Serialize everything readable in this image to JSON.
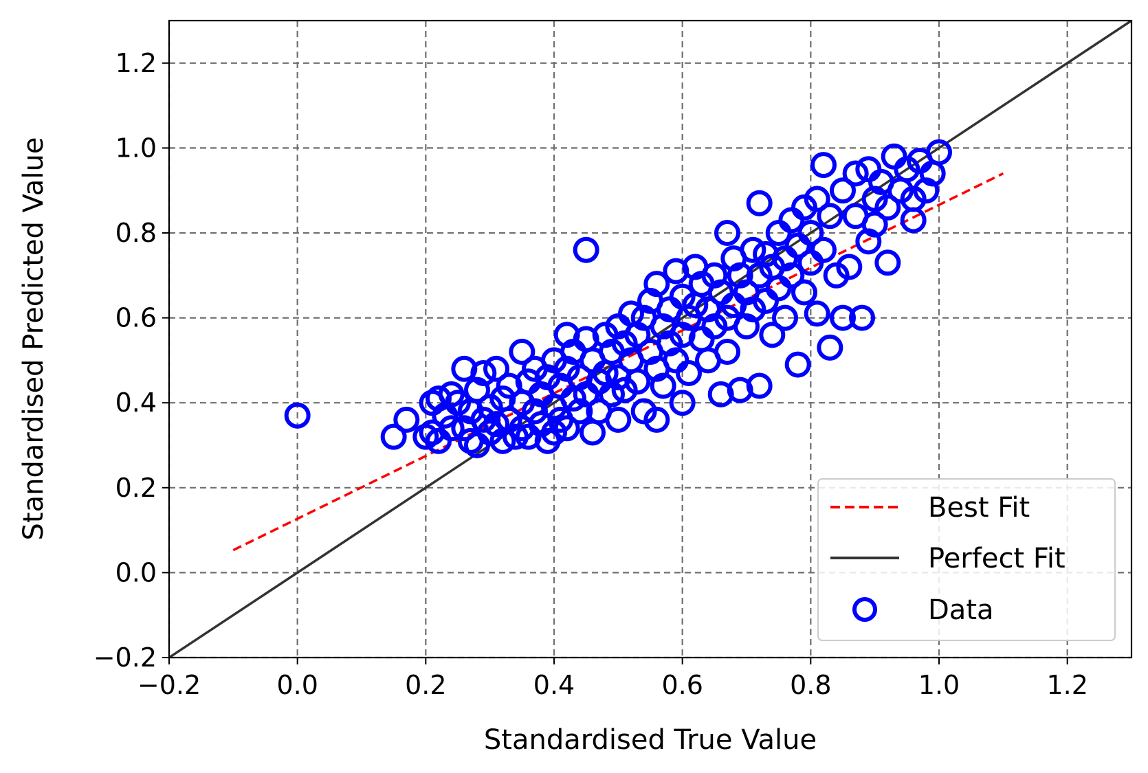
{
  "chart_data": {
    "type": "scatter",
    "title": "",
    "xlabel": "Standardised True Value",
    "ylabel": "Standardised Predicted Value",
    "xlim": [
      -0.2,
      1.3
    ],
    "ylim": [
      -0.2,
      1.3
    ],
    "xticks": [
      -0.2,
      0.0,
      0.2,
      0.4,
      0.6,
      0.8,
      1.0,
      1.2
    ],
    "yticks": [
      -0.2,
      0.0,
      0.2,
      0.4,
      0.6,
      0.8,
      1.0,
      1.2
    ],
    "xtick_labels": [
      "−0.2",
      "0.0",
      "0.2",
      "0.4",
      "0.6",
      "0.8",
      "1.0",
      "1.2"
    ],
    "ytick_labels": [
      "−0.2",
      "0.0",
      "0.2",
      "0.4",
      "0.6",
      "0.8",
      "1.0",
      "1.2"
    ],
    "grid": true,
    "legend_position": "bottom-right",
    "colors": {
      "data": "#0000ff",
      "best_fit": "#ff0000",
      "perfect_fit": "#333333",
      "grid": "#6f6f6f"
    },
    "series": [
      {
        "name": "Best Fit",
        "type": "line",
        "style": "dashed",
        "x": [
          -0.1,
          1.1
        ],
        "y": [
          0.053,
          0.94
        ]
      },
      {
        "name": "Perfect Fit",
        "type": "line",
        "style": "solid",
        "x": [
          -0.2,
          1.3
        ],
        "y": [
          -0.2,
          1.3
        ]
      },
      {
        "name": "Data",
        "type": "scatter",
        "marker": "open-circle",
        "points": [
          [
            0.0,
            0.37
          ],
          [
            0.15,
            0.32
          ],
          [
            0.17,
            0.36
          ],
          [
            0.2,
            0.32
          ],
          [
            0.21,
            0.4
          ],
          [
            0.21,
            0.33
          ],
          [
            0.22,
            0.41
          ],
          [
            0.22,
            0.31
          ],
          [
            0.23,
            0.37
          ],
          [
            0.24,
            0.34
          ],
          [
            0.24,
            0.42
          ],
          [
            0.25,
            0.4
          ],
          [
            0.26,
            0.34
          ],
          [
            0.26,
            0.48
          ],
          [
            0.27,
            0.38
          ],
          [
            0.27,
            0.31
          ],
          [
            0.28,
            0.43
          ],
          [
            0.28,
            0.3
          ],
          [
            0.29,
            0.36
          ],
          [
            0.29,
            0.47
          ],
          [
            0.3,
            0.39
          ],
          [
            0.3,
            0.33
          ],
          [
            0.31,
            0.48
          ],
          [
            0.31,
            0.35
          ],
          [
            0.32,
            0.41
          ],
          [
            0.32,
            0.31
          ],
          [
            0.33,
            0.44
          ],
          [
            0.33,
            0.36
          ],
          [
            0.34,
            0.32
          ],
          [
            0.35,
            0.52
          ],
          [
            0.35,
            0.4
          ],
          [
            0.35,
            0.34
          ],
          [
            0.36,
            0.45
          ],
          [
            0.36,
            0.32
          ],
          [
            0.37,
            0.38
          ],
          [
            0.37,
            0.48
          ],
          [
            0.38,
            0.35
          ],
          [
            0.38,
            0.42
          ],
          [
            0.39,
            0.31
          ],
          [
            0.39,
            0.46
          ],
          [
            0.4,
            0.39
          ],
          [
            0.4,
            0.33
          ],
          [
            0.4,
            0.5
          ],
          [
            0.41,
            0.44
          ],
          [
            0.41,
            0.36
          ],
          [
            0.42,
            0.56
          ],
          [
            0.42,
            0.48
          ],
          [
            0.42,
            0.34
          ],
          [
            0.43,
            0.41
          ],
          [
            0.43,
            0.52
          ],
          [
            0.44,
            0.38
          ],
          [
            0.44,
            0.46
          ],
          [
            0.45,
            0.76
          ],
          [
            0.45,
            0.55
          ],
          [
            0.45,
            0.42
          ],
          [
            0.46,
            0.33
          ],
          [
            0.46,
            0.5
          ],
          [
            0.47,
            0.45
          ],
          [
            0.47,
            0.38
          ],
          [
            0.48,
            0.56
          ],
          [
            0.48,
            0.47
          ],
          [
            0.49,
            0.42
          ],
          [
            0.49,
            0.52
          ],
          [
            0.5,
            0.58
          ],
          [
            0.5,
            0.46
          ],
          [
            0.5,
            0.36
          ],
          [
            0.51,
            0.54
          ],
          [
            0.51,
            0.43
          ],
          [
            0.52,
            0.61
          ],
          [
            0.52,
            0.5
          ],
          [
            0.53,
            0.56
          ],
          [
            0.53,
            0.45
          ],
          [
            0.54,
            0.38
          ],
          [
            0.54,
            0.6
          ],
          [
            0.55,
            0.52
          ],
          [
            0.55,
            0.64
          ],
          [
            0.56,
            0.68
          ],
          [
            0.56,
            0.48
          ],
          [
            0.56,
            0.36
          ],
          [
            0.57,
            0.58
          ],
          [
            0.57,
            0.44
          ],
          [
            0.58,
            0.62
          ],
          [
            0.58,
            0.54
          ],
          [
            0.59,
            0.71
          ],
          [
            0.59,
            0.5
          ],
          [
            0.6,
            0.65
          ],
          [
            0.6,
            0.4
          ],
          [
            0.6,
            0.56
          ],
          [
            0.61,
            0.6
          ],
          [
            0.61,
            0.47
          ],
          [
            0.62,
            0.72
          ],
          [
            0.62,
            0.63
          ],
          [
            0.63,
            0.55
          ],
          [
            0.63,
            0.68
          ],
          [
            0.64,
            0.5
          ],
          [
            0.64,
            0.62
          ],
          [
            0.65,
            0.7
          ],
          [
            0.65,
            0.58
          ],
          [
            0.66,
            0.66
          ],
          [
            0.66,
            0.42
          ],
          [
            0.67,
            0.8
          ],
          [
            0.67,
            0.6
          ],
          [
            0.67,
            0.52
          ],
          [
            0.68,
            0.74
          ],
          [
            0.68,
            0.63
          ],
          [
            0.69,
            0.43
          ],
          [
            0.69,
            0.7
          ],
          [
            0.7,
            0.66
          ],
          [
            0.7,
            0.58
          ],
          [
            0.71,
            0.76
          ],
          [
            0.71,
            0.62
          ],
          [
            0.72,
            0.87
          ],
          [
            0.72,
            0.7
          ],
          [
            0.72,
            0.44
          ],
          [
            0.73,
            0.75
          ],
          [
            0.73,
            0.64
          ],
          [
            0.74,
            0.56
          ],
          [
            0.74,
            0.72
          ],
          [
            0.75,
            0.8
          ],
          [
            0.75,
            0.67
          ],
          [
            0.76,
            0.74
          ],
          [
            0.76,
            0.6
          ],
          [
            0.77,
            0.83
          ],
          [
            0.77,
            0.7
          ],
          [
            0.78,
            0.77
          ],
          [
            0.78,
            0.49
          ],
          [
            0.79,
            0.86
          ],
          [
            0.79,
            0.66
          ],
          [
            0.8,
            0.73
          ],
          [
            0.8,
            0.8
          ],
          [
            0.81,
            0.61
          ],
          [
            0.81,
            0.88
          ],
          [
            0.82,
            0.96
          ],
          [
            0.82,
            0.76
          ],
          [
            0.83,
            0.53
          ],
          [
            0.83,
            0.84
          ],
          [
            0.84,
            0.7
          ],
          [
            0.85,
            0.9
          ],
          [
            0.85,
            0.6
          ],
          [
            0.86,
            0.72
          ],
          [
            0.87,
            0.94
          ],
          [
            0.87,
            0.84
          ],
          [
            0.88,
            0.6
          ],
          [
            0.89,
            0.78
          ],
          [
            0.89,
            0.95
          ],
          [
            0.9,
            0.88
          ],
          [
            0.9,
            0.82
          ],
          [
            0.91,
            0.92
          ],
          [
            0.92,
            0.73
          ],
          [
            0.92,
            0.86
          ],
          [
            0.93,
            0.98
          ],
          [
            0.94,
            0.9
          ],
          [
            0.95,
            0.95
          ],
          [
            0.96,
            0.83
          ],
          [
            0.96,
            0.88
          ],
          [
            0.97,
            0.97
          ],
          [
            0.98,
            0.9
          ],
          [
            0.99,
            0.94
          ],
          [
            1.0,
            0.99
          ]
        ]
      }
    ]
  }
}
